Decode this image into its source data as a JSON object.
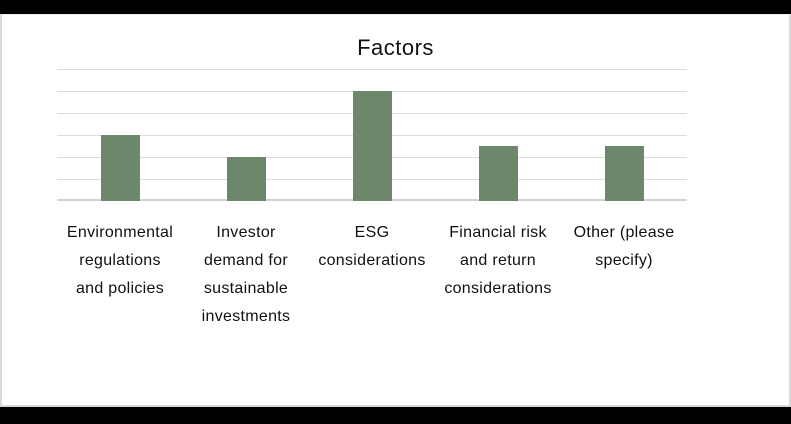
{
  "frame": {
    "outer_background": "#000000",
    "canvas_background": "#ffffff",
    "canvas_border_color": "#d9d9d9"
  },
  "chart_data": {
    "type": "bar",
    "title": "Factors",
    "categories": [
      "Environmental regulations and policies",
      "Investor demand for sustainable investments",
      "ESG considerations",
      "Financial risk and return considerations",
      "Other (please specify)"
    ],
    "category_lines": [
      [
        "Environmental",
        "regulations",
        "and policies"
      ],
      [
        "Investor",
        "demand for",
        "sustainable",
        "investments"
      ],
      [
        "ESG",
        "considerations"
      ],
      [
        "Financial risk",
        "and return",
        "considerations"
      ],
      [
        "Other (please",
        "specify)"
      ]
    ],
    "values": [
      6,
      4,
      10,
      5,
      5
    ],
    "xlabel": "",
    "ylabel": "",
    "ylim": [
      0,
      12
    ],
    "gridline_step": 2,
    "grid": true,
    "legend": false,
    "y_tick_labels_visible": false,
    "bar_color": "#6C8769",
    "gridline_color": "#DDDDDD",
    "axis_line_color": "#D2D2D2",
    "text_color": "#111111"
  }
}
